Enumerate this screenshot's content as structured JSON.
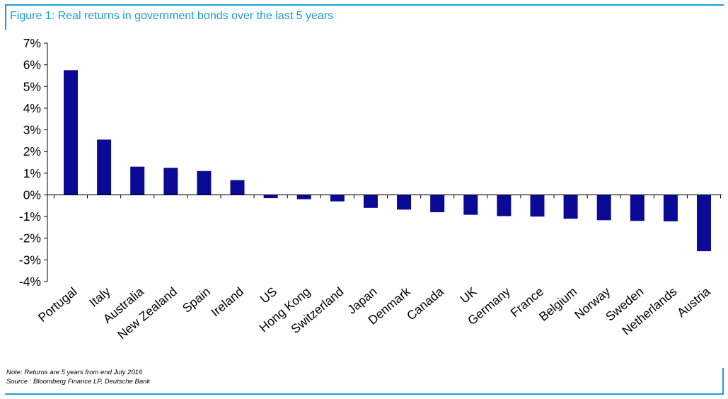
{
  "title": "Figure 1: Real returns in government bonds over the last 5 years",
  "note": "Note: Returns are 5 years from end July 2016",
  "source": "Source : Bloomberg Finance LP, Deutsche Bank",
  "colors": {
    "bar": "#0a0a96",
    "frame": "#1aa0d8",
    "title": "#1a9bd7"
  },
  "chart_data": {
    "type": "bar",
    "title": "Figure 1: Real returns in government bonds over the last 5 years",
    "xlabel": "",
    "ylabel": "",
    "ylim": [
      -4,
      7
    ],
    "yticks": [
      7,
      6,
      5,
      4,
      3,
      2,
      1,
      0,
      -1,
      -2,
      -3,
      -4
    ],
    "ytick_labels": [
      "7%",
      "6%",
      "5%",
      "4%",
      "3%",
      "2%",
      "1%",
      "0%",
      "-1%",
      "-2%",
      "-3%",
      "-4%"
    ],
    "categories": [
      "Portugal",
      "Italy",
      "Australia",
      "New Zealand",
      "Spain",
      "Ireland",
      "US",
      "Hong Kong",
      "Switzerland",
      "Japan",
      "Denmark",
      "Canada",
      "UK",
      "Germany",
      "France",
      "Belgium",
      "Norway",
      "Sweden",
      "Netherlands",
      "Austria"
    ],
    "values": [
      5.75,
      2.55,
      1.3,
      1.25,
      1.1,
      0.68,
      -0.15,
      -0.2,
      -0.3,
      -0.6,
      -0.68,
      -0.8,
      -0.92,
      -0.98,
      -1.0,
      -1.1,
      -1.17,
      -1.2,
      -1.22,
      -2.6
    ],
    "grid": false,
    "legend": "none"
  }
}
